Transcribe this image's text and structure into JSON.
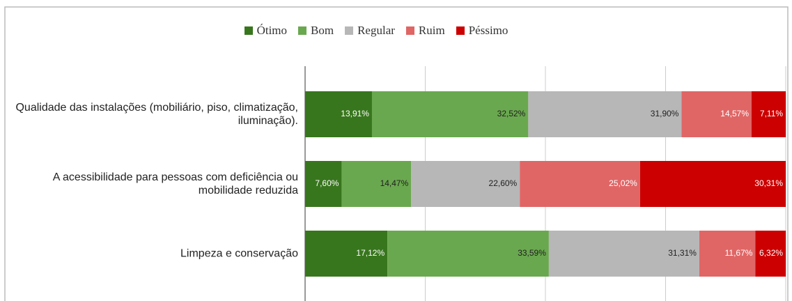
{
  "chart_data": {
    "type": "stacked_bar_horizontal",
    "categories": [
      "Qualidade das instalações (mobiliário, piso, climatização, iluminação).",
      "A acessibilidade para pessoas com deficiência ou mobilidade reduzida",
      "Limpeza e conservação"
    ],
    "series": [
      {
        "name": "Ótimo",
        "color": "#38761d",
        "label_color": "#ffffff",
        "values": [
          13.91,
          7.6,
          17.12
        ],
        "value_labels": [
          "13,91%",
          "7,60%",
          "17,12%"
        ]
      },
      {
        "name": "Bom",
        "color": "#6aa84f",
        "label_color": "#1f1f1f",
        "values": [
          32.52,
          14.47,
          33.59
        ],
        "value_labels": [
          "32,52%",
          "14,47%",
          "33,59%"
        ]
      },
      {
        "name": "Regular",
        "color": "#b7b7b7",
        "label_color": "#1f1f1f",
        "values": [
          31.9,
          22.6,
          31.31
        ],
        "value_labels": [
          "31,90%",
          "22,60%",
          "31,31%"
        ]
      },
      {
        "name": "Ruim",
        "color": "#e06666",
        "label_color": "#ffffff",
        "values": [
          14.57,
          25.02,
          11.67
        ],
        "value_labels": [
          "14,57%",
          "25,02%",
          "11,67%"
        ]
      },
      {
        "name": "Péssimo",
        "color": "#cc0000",
        "label_color": "#ffffff",
        "values": [
          7.11,
          30.31,
          6.32
        ],
        "value_labels": [
          "7,11%",
          "30,31%",
          "6,32%"
        ]
      }
    ],
    "xlim": [
      0,
      100
    ],
    "xticks": [
      0,
      25,
      50,
      75,
      100
    ],
    "grid": true,
    "legend": "top"
  }
}
